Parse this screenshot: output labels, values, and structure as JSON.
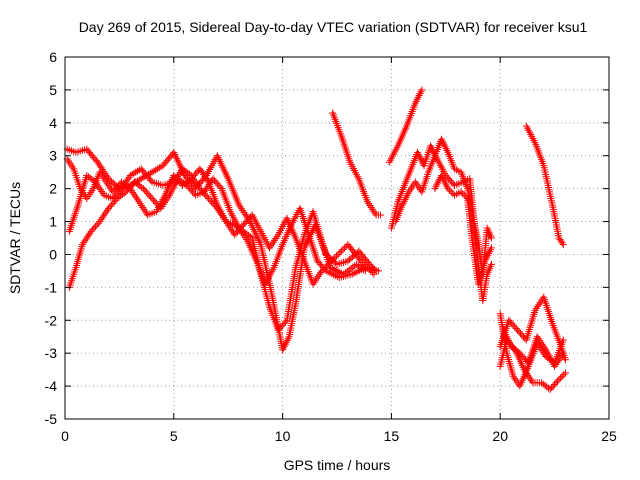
{
  "chart_data": {
    "type": "scatter",
    "title": "Day 269 of 2015, Sidereal Day-to-day VTEC variation (SDTVAR) for receiver ksu1",
    "xlabel": "GPS time / hours",
    "ylabel": "SDTVAR / TECUs",
    "xlim": [
      0,
      25
    ],
    "ylim": [
      -5,
      6
    ],
    "xticks": [
      0,
      5,
      10,
      15,
      20,
      25
    ],
    "yticks": [
      -5,
      -4,
      -3,
      -2,
      -1,
      0,
      1,
      2,
      3,
      4,
      5,
      6
    ],
    "grid": true,
    "marker": "plus",
    "color": "#ff0000",
    "tracks": [
      [
        [
          0.1,
          3.2
        ],
        [
          0.5,
          3.1
        ],
        [
          1.0,
          3.2
        ],
        [
          1.5,
          2.8
        ],
        [
          2.0,
          2.3
        ],
        [
          2.5,
          2.0
        ],
        [
          3.0,
          2.1
        ],
        [
          3.5,
          2.3
        ],
        [
          4.0,
          2.5
        ],
        [
          4.5,
          2.7
        ],
        [
          5.0,
          3.1
        ],
        [
          5.5,
          2.4
        ],
        [
          6.0,
          2.0
        ],
        [
          6.5,
          2.4
        ],
        [
          7.0,
          3.0
        ],
        [
          7.5,
          2.3
        ],
        [
          8.0,
          1.5
        ],
        [
          8.5,
          1.0
        ],
        [
          9.0,
          0.3
        ],
        [
          9.5,
          -1.2
        ],
        [
          10.0,
          -2.9
        ],
        [
          10.3,
          -2.5
        ],
        [
          10.6,
          -1.5
        ],
        [
          11.0,
          0.2
        ],
        [
          11.5,
          0.9
        ],
        [
          12.0,
          0.0
        ],
        [
          12.5,
          -0.3
        ],
        [
          13.0,
          -0.2
        ],
        [
          13.5,
          0.1
        ],
        [
          14.0,
          -0.3
        ],
        [
          14.3,
          -0.5
        ]
      ],
      [
        [
          0.2,
          0.7
        ],
        [
          0.6,
          1.5
        ],
        [
          1.0,
          2.4
        ],
        [
          1.4,
          2.2
        ],
        [
          1.8,
          1.8
        ],
        [
          2.2,
          1.7
        ],
        [
          2.6,
          2.0
        ],
        [
          3.0,
          2.4
        ],
        [
          3.5,
          2.6
        ],
        [
          4.0,
          2.2
        ],
        [
          4.5,
          2.1
        ],
        [
          5.0,
          2.2
        ],
        [
          5.4,
          2.6
        ],
        [
          5.8,
          2.4
        ],
        [
          6.2,
          2.0
        ],
        [
          6.6,
          1.7
        ],
        [
          7.0,
          1.4
        ],
        [
          7.4,
          1.0
        ],
        [
          7.8,
          0.9
        ],
        [
          8.2,
          0.7
        ],
        [
          8.6,
          0.5
        ],
        [
          9.0,
          -0.6
        ],
        [
          9.4,
          -1.6
        ],
        [
          9.8,
          -2.3
        ],
        [
          10.2,
          -2.0
        ],
        [
          10.6,
          -0.4
        ],
        [
          11.0,
          0.6
        ],
        [
          11.4,
          1.3
        ],
        [
          11.8,
          0.4
        ],
        [
          12.2,
          -0.4
        ],
        [
          12.8,
          -0.6
        ],
        [
          13.4,
          -0.3
        ],
        [
          13.8,
          -0.5
        ]
      ],
      [
        [
          0.2,
          -1.0
        ],
        [
          0.5,
          -0.4
        ],
        [
          0.8,
          0.3
        ],
        [
          1.2,
          0.7
        ],
        [
          1.6,
          1.0
        ],
        [
          2.0,
          1.4
        ],
        [
          2.4,
          1.7
        ],
        [
          2.8,
          1.9
        ],
        [
          3.2,
          2.2
        ],
        [
          3.6,
          2.0
        ],
        [
          4.0,
          1.7
        ],
        [
          4.4,
          1.4
        ],
        [
          4.8,
          1.8
        ],
        [
          5.2,
          2.3
        ],
        [
          5.6,
          2.1
        ],
        [
          6.0,
          1.8
        ],
        [
          6.4,
          1.9
        ],
        [
          6.8,
          2.3
        ],
        [
          7.2,
          2.0
        ],
        [
          7.6,
          1.3
        ],
        [
          8.0,
          0.8
        ],
        [
          8.4,
          0.4
        ],
        [
          8.8,
          -0.2
        ],
        [
          9.2,
          -0.9
        ],
        [
          9.6,
          -0.4
        ],
        [
          10.0,
          0.3
        ],
        [
          10.4,
          0.9
        ],
        [
          10.8,
          1.4
        ],
        [
          11.2,
          0.6
        ],
        [
          11.6,
          -0.2
        ],
        [
          12.0,
          -0.5
        ],
        [
          12.6,
          -0.7
        ],
        [
          13.2,
          -0.6
        ],
        [
          13.8,
          -0.4
        ],
        [
          14.4,
          -0.5
        ]
      ],
      [
        [
          0.1,
          2.9
        ],
        [
          0.4,
          2.6
        ],
        [
          0.7,
          2.0
        ],
        [
          1.0,
          1.7
        ],
        [
          1.3,
          2.0
        ],
        [
          1.6,
          2.5
        ],
        [
          1.9,
          2.2
        ],
        [
          2.2,
          1.9
        ],
        [
          2.6,
          2.2
        ],
        [
          3.0,
          2.0
        ],
        [
          3.4,
          1.6
        ],
        [
          3.8,
          1.2
        ],
        [
          4.2,
          1.3
        ],
        [
          4.6,
          1.8
        ],
        [
          5.0,
          2.4
        ],
        [
          5.4,
          2.1
        ],
        [
          5.8,
          2.3
        ],
        [
          6.2,
          2.6
        ],
        [
          6.6,
          2.2
        ],
        [
          7.0,
          1.5
        ],
        [
          7.4,
          1.0
        ],
        [
          7.8,
          0.6
        ],
        [
          8.2,
          0.9
        ],
        [
          8.6,
          1.2
        ],
        [
          9.0,
          0.7
        ],
        [
          9.4,
          0.2
        ],
        [
          9.8,
          0.6
        ],
        [
          10.2,
          1.1
        ],
        [
          10.6,
          0.5
        ],
        [
          11.0,
          -0.2
        ],
        [
          11.4,
          -0.9
        ],
        [
          11.8,
          -0.5
        ],
        [
          12.4,
          -0.1
        ],
        [
          13.0,
          0.3
        ],
        [
          13.6,
          -0.2
        ],
        [
          14.2,
          -0.6
        ]
      ],
      [
        [
          12.3,
          4.3
        ],
        [
          12.7,
          3.6
        ],
        [
          13.1,
          2.8
        ],
        [
          13.5,
          2.3
        ],
        [
          13.9,
          1.6
        ],
        [
          14.3,
          1.2
        ],
        [
          14.5,
          1.2
        ]
      ],
      [
        [
          14.9,
          2.8
        ],
        [
          15.3,
          3.3
        ],
        [
          15.7,
          3.9
        ],
        [
          16.1,
          4.6
        ],
        [
          16.4,
          5.0
        ]
      ],
      [
        [
          15.0,
          0.8
        ],
        [
          15.3,
          1.6
        ],
        [
          15.6,
          2.1
        ],
        [
          15.9,
          2.6
        ],
        [
          16.2,
          3.1
        ],
        [
          16.5,
          2.7
        ],
        [
          16.8,
          3.3
        ],
        [
          17.1,
          2.9
        ],
        [
          17.5,
          2.4
        ],
        [
          17.9,
          2.1
        ],
        [
          18.3,
          2.2
        ],
        [
          18.6,
          2.3
        ],
        [
          18.8,
          1.0
        ],
        [
          19.0,
          0.3
        ],
        [
          19.2,
          -0.6
        ],
        [
          19.4,
          0.8
        ],
        [
          19.6,
          0.5
        ]
      ],
      [
        [
          15.2,
          1.0
        ],
        [
          15.5,
          1.5
        ],
        [
          15.8,
          1.9
        ],
        [
          16.1,
          2.2
        ],
        [
          16.4,
          1.9
        ],
        [
          16.7,
          2.5
        ],
        [
          17.0,
          3.0
        ],
        [
          17.3,
          3.5
        ],
        [
          17.6,
          3.1
        ],
        [
          17.9,
          2.6
        ],
        [
          18.2,
          2.5
        ],
        [
          18.5,
          2.0
        ],
        [
          18.8,
          1.0
        ],
        [
          19.0,
          -0.4
        ],
        [
          19.2,
          -1.4
        ],
        [
          19.4,
          -0.6
        ],
        [
          19.6,
          -0.3
        ]
      ],
      [
        [
          17.0,
          2.0
        ],
        [
          17.3,
          2.4
        ],
        [
          17.6,
          2.0
        ],
        [
          17.9,
          1.8
        ],
        [
          18.2,
          1.9
        ],
        [
          18.5,
          1.7
        ],
        [
          18.7,
          0.5
        ],
        [
          19.0,
          -0.9
        ],
        [
          19.3,
          -0.2
        ],
        [
          19.6,
          0.2
        ]
      ],
      [
        [
          21.2,
          3.9
        ],
        [
          21.6,
          3.4
        ],
        [
          22.0,
          2.7
        ],
        [
          22.4,
          1.5
        ],
        [
          22.7,
          0.5
        ],
        [
          22.9,
          0.3
        ]
      ],
      [
        [
          20.0,
          -2.8
        ],
        [
          20.4,
          -2.0
        ],
        [
          20.8,
          -2.3
        ],
        [
          21.2,
          -2.6
        ],
        [
          21.6,
          -1.7
        ],
        [
          22.0,
          -1.3
        ],
        [
          22.4,
          -2.1
        ],
        [
          22.8,
          -2.8
        ],
        [
          23.0,
          -3.2
        ]
      ],
      [
        [
          20.0,
          -3.4
        ],
        [
          20.3,
          -2.6
        ],
        [
          20.7,
          -2.9
        ],
        [
          21.1,
          -3.5
        ],
        [
          21.5,
          -3.9
        ],
        [
          21.9,
          -3.9
        ],
        [
          22.3,
          -4.1
        ],
        [
          22.7,
          -3.8
        ],
        [
          23.0,
          -3.6
        ]
      ],
      [
        [
          20.1,
          -2.2
        ],
        [
          20.5,
          -2.8
        ],
        [
          20.9,
          -3.0
        ],
        [
          21.3,
          -3.3
        ],
        [
          21.7,
          -2.5
        ],
        [
          22.1,
          -2.9
        ],
        [
          22.5,
          -3.4
        ],
        [
          22.9,
          -3.0
        ]
      ],
      [
        [
          20.0,
          -1.8
        ],
        [
          20.3,
          -3.0
        ],
        [
          20.6,
          -3.7
        ],
        [
          20.9,
          -4.0
        ],
        [
          21.3,
          -3.4
        ],
        [
          21.7,
          -2.7
        ],
        [
          22.1,
          -3.1
        ],
        [
          22.5,
          -3.3
        ],
        [
          22.9,
          -2.6
        ]
      ]
    ]
  }
}
